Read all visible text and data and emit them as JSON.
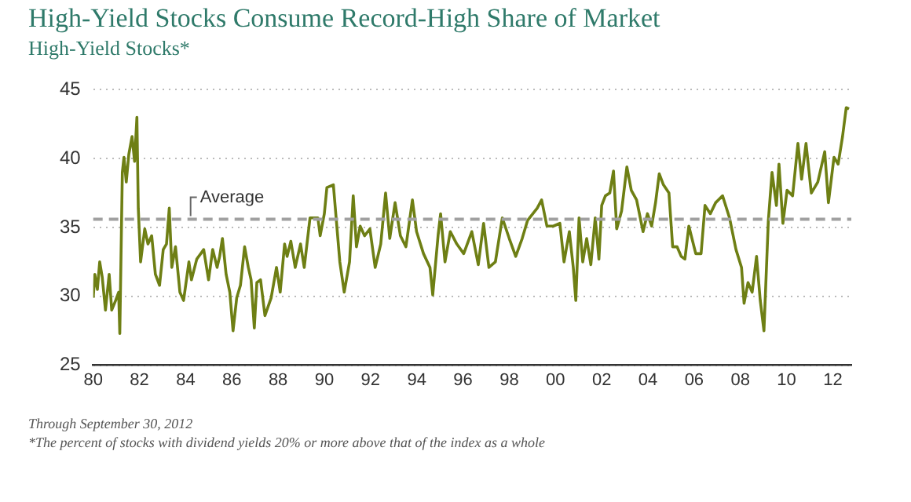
{
  "chart_data": {
    "type": "line",
    "title": "High-Yield Stocks Consume Record-High Share of Market",
    "subtitle": "High-Yield Stocks*",
    "x": [
      1980.0,
      1980.07,
      1980.18,
      1980.28,
      1980.39,
      1980.53,
      1980.69,
      1980.8,
      1980.97,
      1981.1,
      1981.15,
      1981.26,
      1981.33,
      1981.43,
      1981.54,
      1981.68,
      1981.79,
      1981.89,
      1981.95,
      1982.05,
      1982.23,
      1982.37,
      1982.53,
      1982.69,
      1982.87,
      1983.03,
      1983.17,
      1983.29,
      1983.4,
      1983.56,
      1983.75,
      1983.91,
      1984.14,
      1984.25,
      1984.48,
      1984.78,
      1984.99,
      1985.17,
      1985.36,
      1985.47,
      1985.59,
      1985.75,
      1985.91,
      1986.05,
      1986.21,
      1986.37,
      1986.55,
      1986.71,
      1986.83,
      1986.97,
      1987.08,
      1987.24,
      1987.43,
      1987.7,
      1987.93,
      1988.09,
      1988.28,
      1988.39,
      1988.55,
      1988.74,
      1988.97,
      1989.13,
      1989.38,
      1989.72,
      1989.82,
      1990.0,
      1990.11,
      1990.39,
      1990.56,
      1990.67,
      1990.86,
      1991.09,
      1991.25,
      1991.39,
      1991.55,
      1991.74,
      1991.97,
      1992.2,
      1992.44,
      1992.65,
      1992.83,
      1993.06,
      1993.29,
      1993.53,
      1993.81,
      1993.99,
      1994.29,
      1994.57,
      1994.69,
      1994.92,
      1995.03,
      1995.22,
      1995.45,
      1995.73,
      1996.03,
      1996.38,
      1996.66,
      1996.89,
      1997.12,
      1997.4,
      1997.7,
      1998.0,
      1998.28,
      1998.56,
      1998.79,
      1999.21,
      1999.4,
      1999.63,
      1999.91,
      2000.19,
      2000.37,
      2000.6,
      2000.77,
      2000.88,
      2001.02,
      2001.18,
      2001.35,
      2001.53,
      2001.72,
      2001.88,
      2002.0,
      2002.16,
      2002.35,
      2002.51,
      2002.65,
      2002.86,
      2003.09,
      2003.28,
      2003.51,
      2003.79,
      2003.98,
      2004.16,
      2004.33,
      2004.49,
      2004.67,
      2004.91,
      2005.07,
      2005.26,
      2005.44,
      2005.6,
      2005.77,
      2006.07,
      2006.3,
      2006.47,
      2006.7,
      2006.93,
      2007.23,
      2007.53,
      2007.81,
      2008.05,
      2008.16,
      2008.33,
      2008.51,
      2008.7,
      2008.86,
      2009.02,
      2009.21,
      2009.37,
      2009.56,
      2009.67,
      2009.84,
      2010.02,
      2010.26,
      2010.49,
      2010.65,
      2010.84,
      2011.07,
      2011.35,
      2011.65,
      2011.81,
      2012.05,
      2012.23,
      2012.42,
      2012.58,
      2012.7
    ],
    "series": [
      {
        "color": "#6e7f14",
        "values": [
          29.9,
          31.6,
          30.5,
          32.5,
          31.4,
          29.0,
          31.6,
          29.0,
          29.7,
          30.3,
          27.3,
          39.0,
          40.1,
          38.3,
          40.3,
          41.6,
          39.8,
          43.0,
          36.4,
          32.5,
          34.9,
          33.8,
          34.4,
          31.6,
          30.8,
          33.4,
          33.8,
          36.4,
          32.1,
          33.6,
          30.3,
          29.7,
          32.5,
          31.2,
          32.7,
          33.4,
          31.2,
          33.4,
          32.1,
          32.9,
          34.2,
          31.6,
          30.3,
          27.5,
          29.9,
          30.8,
          33.6,
          32.1,
          31.2,
          27.7,
          31.0,
          31.2,
          28.6,
          29.9,
          32.1,
          30.3,
          33.8,
          32.9,
          34.0,
          32.1,
          33.8,
          32.1,
          35.7,
          35.7,
          34.4,
          36.0,
          37.9,
          38.1,
          34.7,
          32.5,
          30.3,
          32.5,
          37.3,
          33.6,
          35.1,
          34.4,
          34.9,
          32.1,
          33.8,
          37.5,
          34.2,
          36.8,
          34.4,
          33.6,
          37.0,
          34.7,
          33.1,
          32.1,
          30.1,
          34.4,
          36.0,
          32.5,
          34.7,
          33.8,
          33.1,
          34.7,
          32.3,
          35.3,
          32.1,
          32.5,
          35.7,
          34.2,
          32.9,
          34.2,
          35.5,
          36.4,
          37.0,
          35.1,
          35.1,
          35.3,
          32.5,
          34.7,
          32.1,
          29.7,
          35.7,
          32.5,
          34.2,
          32.3,
          35.7,
          32.7,
          36.6,
          37.3,
          37.5,
          39.1,
          34.9,
          36.2,
          39.4,
          37.7,
          37.0,
          34.7,
          36.0,
          35.1,
          36.8,
          38.9,
          38.1,
          37.5,
          33.6,
          33.6,
          32.9,
          32.7,
          35.1,
          33.1,
          33.1,
          36.6,
          36.0,
          36.8,
          37.3,
          35.7,
          33.4,
          32.1,
          29.5,
          31.0,
          30.3,
          32.9,
          29.7,
          27.5,
          35.5,
          39.0,
          36.6,
          39.6,
          35.3,
          37.7,
          37.3,
          41.1,
          38.5,
          41.1,
          37.5,
          38.3,
          40.5,
          36.8,
          40.1,
          39.6,
          41.6,
          43.7,
          43.6
        ]
      }
    ],
    "xlim": [
      1980,
      2012.8
    ],
    "xticks": [
      {
        "value": 1980,
        "label": "80"
      },
      {
        "value": 1982,
        "label": "82"
      },
      {
        "value": 1984,
        "label": "84"
      },
      {
        "value": 1986,
        "label": "86"
      },
      {
        "value": 1988,
        "label": "88"
      },
      {
        "value": 1990,
        "label": "90"
      },
      {
        "value": 1992,
        "label": "92"
      },
      {
        "value": 1994,
        "label": "94"
      },
      {
        "value": 1996,
        "label": "96"
      },
      {
        "value": 1998,
        "label": "98"
      },
      {
        "value": 2000,
        "label": "00"
      },
      {
        "value": 2002,
        "label": "02"
      },
      {
        "value": 2004,
        "label": "04"
      },
      {
        "value": 2006,
        "label": "06"
      },
      {
        "value": 2008,
        "label": "08"
      },
      {
        "value": 2010,
        "label": "10"
      },
      {
        "value": 2012,
        "label": "12"
      }
    ],
    "ylim": [
      25,
      45
    ],
    "yticks": [
      25,
      30,
      35,
      40,
      45
    ],
    "grid": "y",
    "marker": "none",
    "line_style": "solid",
    "ref_lines": [
      {
        "axis": "y",
        "value": 35.6,
        "label": "Average",
        "color": "#a0a0a0",
        "line_style": "dashed"
      }
    ],
    "annotations": [
      "Through September 30, 2012",
      "*The percent of stocks with dividend yields 20% or more above that of the index as a whole"
    ]
  }
}
